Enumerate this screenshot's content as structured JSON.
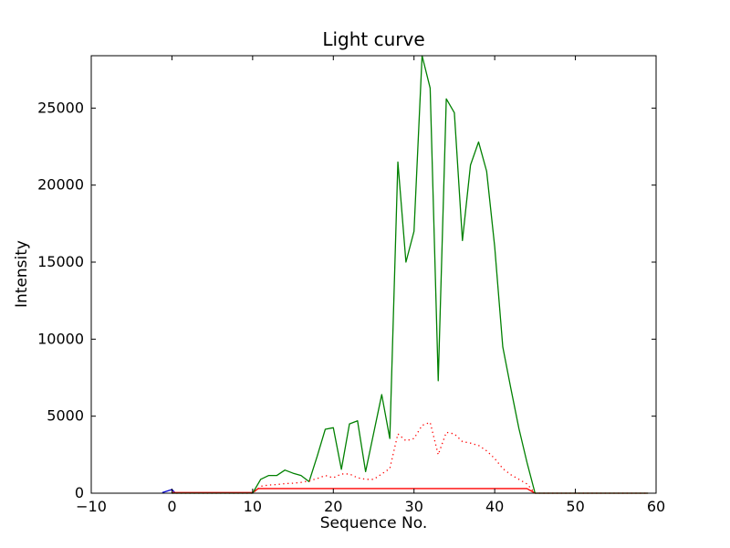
{
  "figure": {
    "background": "#ffffff"
  },
  "chart_data": {
    "type": "line",
    "title": "Light curve",
    "xlabel": "Sequence No.",
    "ylabel": "Intensity",
    "xlim": [
      -10,
      60
    ],
    "ylim": [
      0,
      28400
    ],
    "grid": false,
    "legend": null,
    "xticks": [
      -10,
      0,
      10,
      20,
      30,
      40,
      50,
      60
    ],
    "xtick_labels": [
      "−10",
      "0",
      "10",
      "20",
      "30",
      "40",
      "50",
      "60"
    ],
    "yticks": [
      0,
      5000,
      10000,
      15000,
      20000,
      25000
    ],
    "ytick_labels": [
      "0",
      "5000",
      "10000",
      "15000",
      "20000",
      "25000"
    ],
    "axis_color": "#000000",
    "series": [
      {
        "name": "blue-spike",
        "color": "#0000cc",
        "style": "solid",
        "points": [
          [
            -1.2,
            40
          ],
          [
            0,
            240
          ],
          [
            0.35,
            40
          ]
        ]
      },
      {
        "name": "red-background-level",
        "color": "#ff0000",
        "style": "solid",
        "points": [
          [
            0,
            40
          ],
          [
            10,
            40
          ],
          [
            10.7,
            300
          ],
          [
            44,
            300
          ],
          [
            45,
            0
          ],
          [
            59,
            0
          ]
        ]
      },
      {
        "name": "green-light-curve",
        "color": "#008000",
        "style": "solid",
        "points": [
          [
            0,
            0
          ],
          [
            1,
            0
          ],
          [
            2,
            0
          ],
          [
            3,
            0
          ],
          [
            4,
            0
          ],
          [
            5,
            0
          ],
          [
            6,
            0
          ],
          [
            7,
            0
          ],
          [
            8,
            0
          ],
          [
            9,
            0
          ],
          [
            10,
            0
          ],
          [
            11,
            900
          ],
          [
            12,
            1150
          ],
          [
            13,
            1150
          ],
          [
            14,
            1500
          ],
          [
            15,
            1300
          ],
          [
            16,
            1150
          ],
          [
            17,
            750
          ],
          [
            18,
            2400
          ],
          [
            19,
            4150
          ],
          [
            20,
            4250
          ],
          [
            21,
            1550
          ],
          [
            22,
            4500
          ],
          [
            23,
            4700
          ],
          [
            24,
            1400
          ],
          [
            25,
            3900
          ],
          [
            26,
            6400
          ],
          [
            27,
            3550
          ],
          [
            28,
            21500
          ],
          [
            29,
            15000
          ],
          [
            30,
            17000
          ],
          [
            31,
            28400
          ],
          [
            32,
            26300
          ],
          [
            33,
            7300
          ],
          [
            34,
            25600
          ],
          [
            35,
            24700
          ],
          [
            36,
            16400
          ],
          [
            37,
            21300
          ],
          [
            38,
            22800
          ],
          [
            39,
            20900
          ],
          [
            40,
            16000
          ],
          [
            41,
            9500
          ],
          [
            42,
            6800
          ],
          [
            43,
            4200
          ],
          [
            44,
            2000
          ],
          [
            45,
            0
          ],
          [
            46,
            0
          ],
          [
            47,
            0
          ],
          [
            48,
            0
          ],
          [
            49,
            0
          ],
          [
            50,
            0
          ],
          [
            51,
            0
          ],
          [
            52,
            0
          ],
          [
            53,
            0
          ],
          [
            54,
            0
          ],
          [
            55,
            0
          ],
          [
            56,
            0
          ],
          [
            57,
            0
          ],
          [
            58,
            0
          ],
          [
            59,
            0
          ]
        ]
      },
      {
        "name": "red-dotted-error",
        "color": "#ff0000",
        "style": "dotted",
        "points": [
          [
            0,
            0
          ],
          [
            1,
            0
          ],
          [
            2,
            0
          ],
          [
            3,
            0
          ],
          [
            4,
            0
          ],
          [
            5,
            0
          ],
          [
            6,
            0
          ],
          [
            7,
            0
          ],
          [
            8,
            0
          ],
          [
            9,
            0
          ],
          [
            10,
            0
          ],
          [
            11,
            450
          ],
          [
            12,
            530
          ],
          [
            13,
            560
          ],
          [
            14,
            620
          ],
          [
            15,
            650
          ],
          [
            16,
            700
          ],
          [
            17,
            800
          ],
          [
            18,
            950
          ],
          [
            19,
            1150
          ],
          [
            20,
            1000
          ],
          [
            21,
            1250
          ],
          [
            22,
            1250
          ],
          [
            23,
            1000
          ],
          [
            24,
            900
          ],
          [
            25,
            900
          ],
          [
            26,
            1250
          ],
          [
            27,
            1600
          ],
          [
            28,
            3850
          ],
          [
            29,
            3400
          ],
          [
            30,
            3550
          ],
          [
            31,
            4400
          ],
          [
            32,
            4600
          ],
          [
            33,
            2500
          ],
          [
            34,
            3950
          ],
          [
            35,
            3850
          ],
          [
            36,
            3350
          ],
          [
            37,
            3250
          ],
          [
            38,
            3100
          ],
          [
            39,
            2750
          ],
          [
            40,
            2250
          ],
          [
            41,
            1600
          ],
          [
            42,
            1200
          ],
          [
            43,
            900
          ],
          [
            44,
            600
          ],
          [
            45,
            0
          ],
          [
            46,
            0
          ],
          [
            47,
            0
          ],
          [
            48,
            0
          ],
          [
            49,
            0
          ],
          [
            50,
            0
          ],
          [
            51,
            0
          ],
          [
            52,
            0
          ],
          [
            53,
            0
          ],
          [
            54,
            0
          ],
          [
            55,
            0
          ],
          [
            56,
            0
          ],
          [
            57,
            0
          ],
          [
            58,
            0
          ],
          [
            59,
            0
          ]
        ]
      }
    ]
  }
}
